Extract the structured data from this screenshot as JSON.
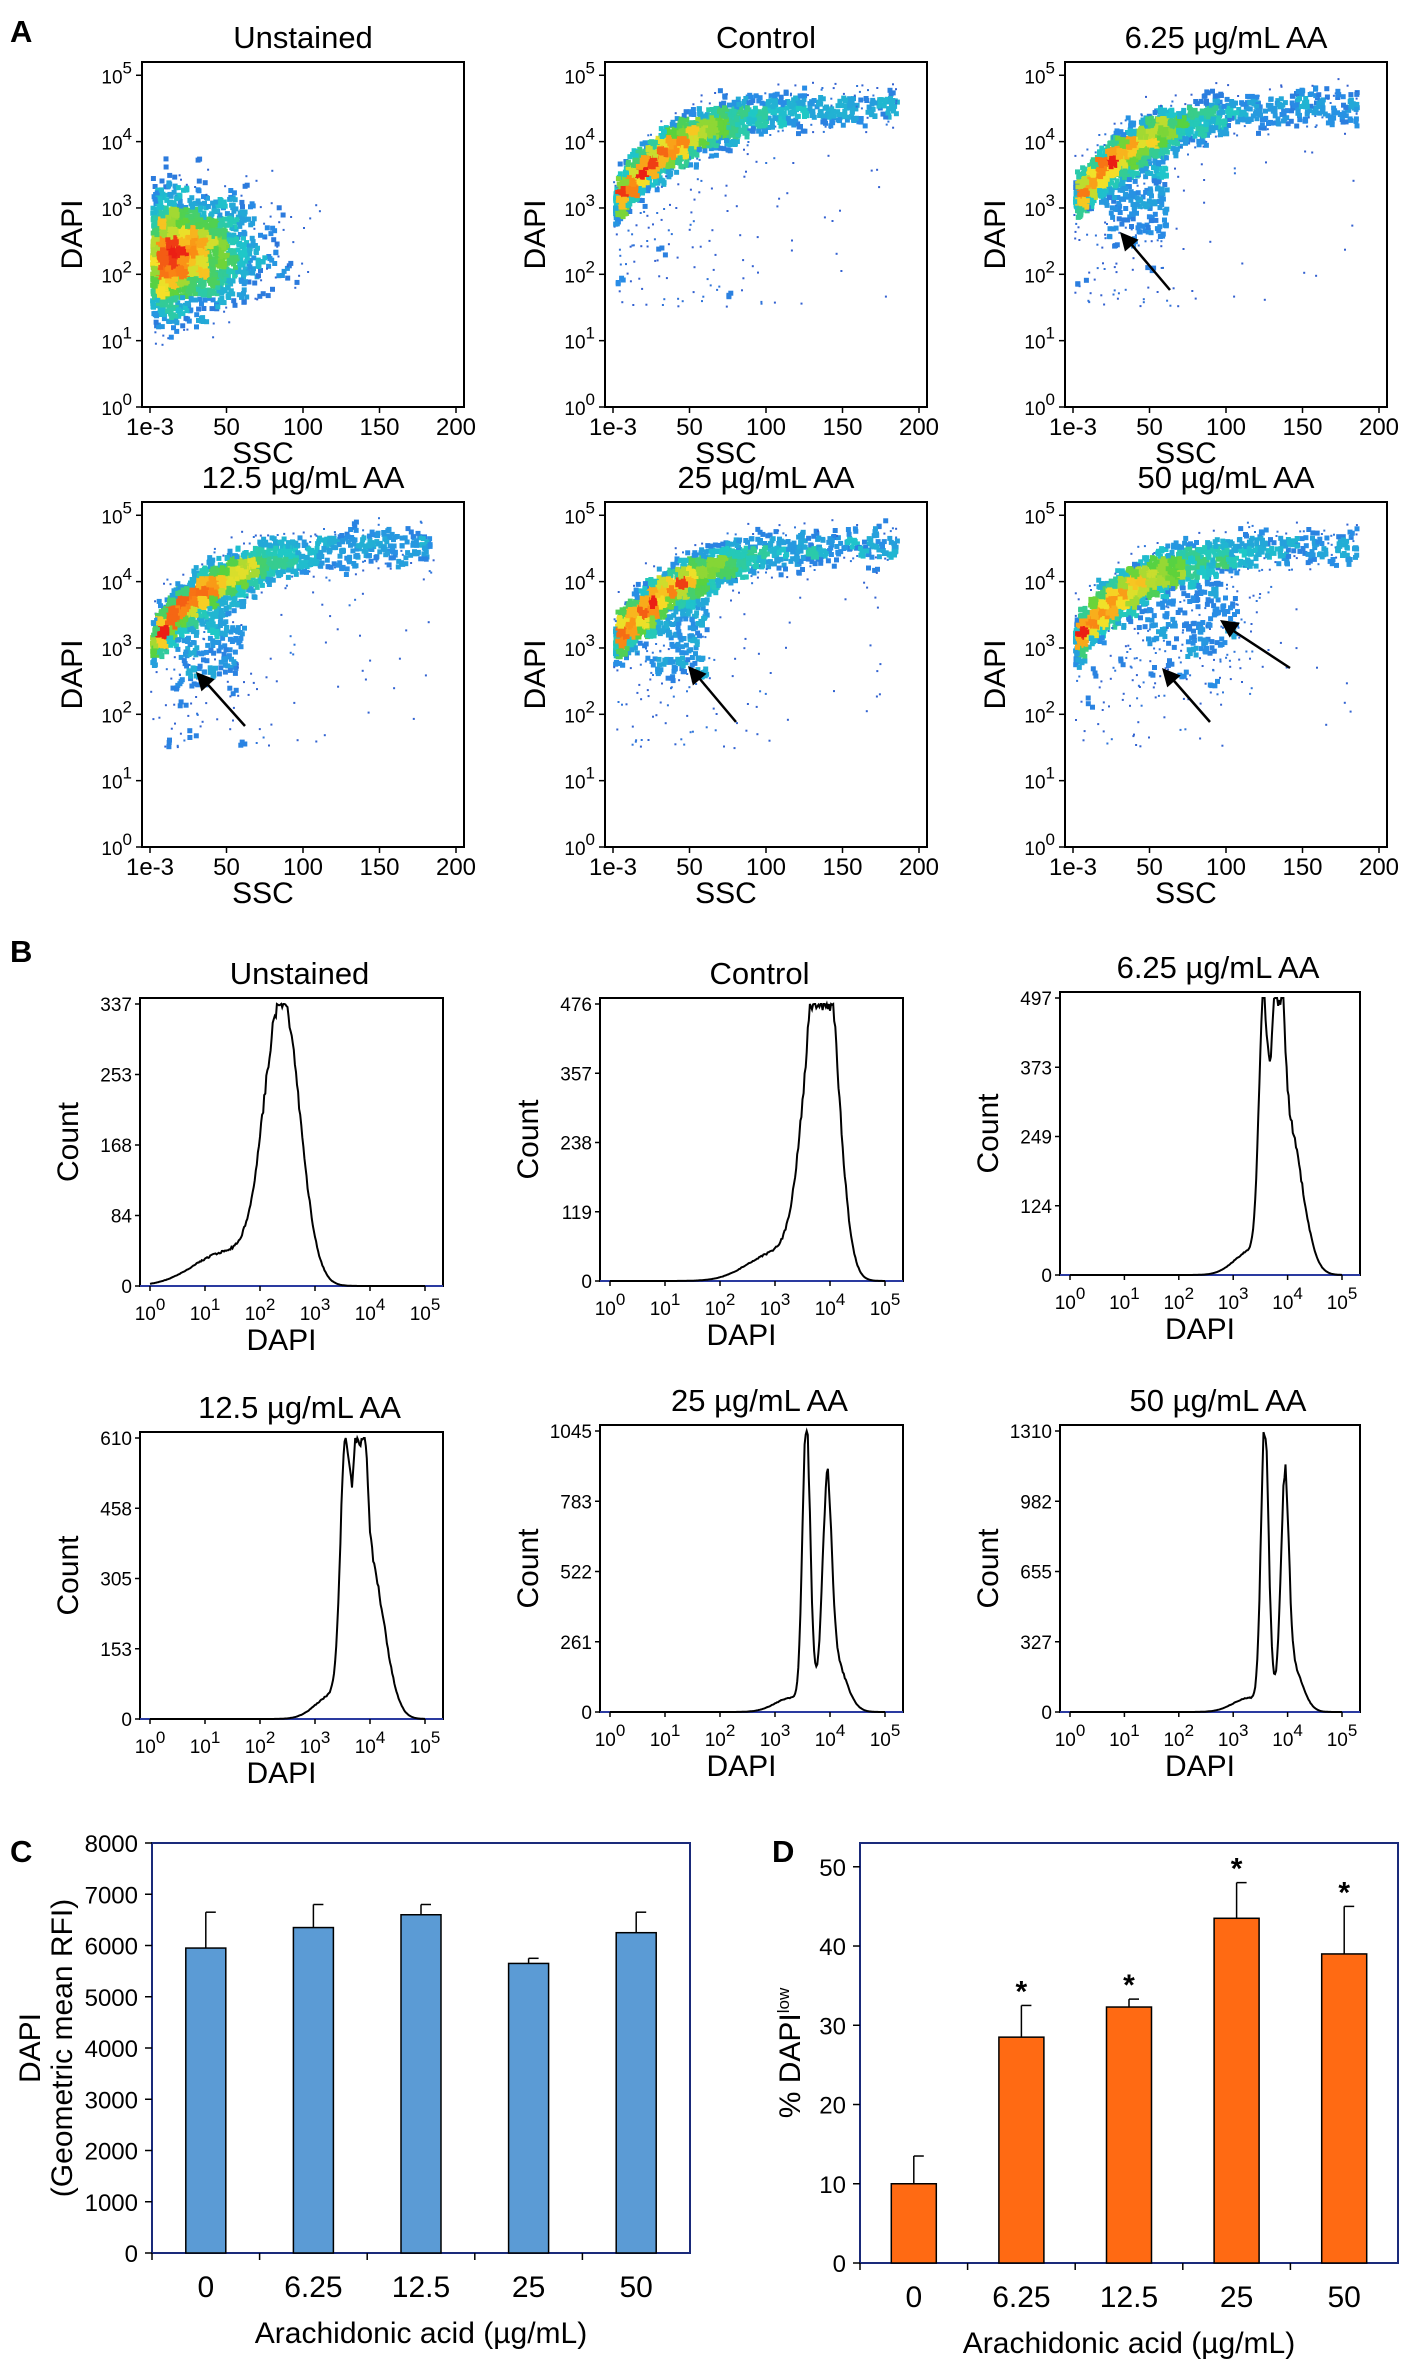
{
  "panel_labels": {
    "a": "A",
    "b": "B",
    "c": "C",
    "d": "D"
  },
  "chart_data": [
    {
      "type": "scatter",
      "panel": "A",
      "description_kind": "flow cytometry density plots",
      "xlabel": "SSC",
      "ylabel": "DAPI",
      "xticks": [
        "1e-3",
        "50",
        "100",
        "150",
        "200"
      ],
      "yticks": [
        {
          "base": "10",
          "exp": "0"
        },
        {
          "base": "10",
          "exp": "1"
        },
        {
          "base": "10",
          "exp": "2"
        },
        {
          "base": "10",
          "exp": "3"
        },
        {
          "base": "10",
          "exp": "4"
        },
        {
          "base": "10",
          "exp": "5"
        }
      ],
      "plots": [
        {
          "title": "Unstained",
          "arrows": 0
        },
        {
          "title": "Control",
          "arrows": 0
        },
        {
          "title": "6.25 µg/mL AA",
          "arrows": 1
        },
        {
          "title": "12.5 µg/mL AA",
          "arrows": 1
        },
        {
          "title": "25 µg/mL AA",
          "arrows": 1
        },
        {
          "title": "50 µg/mL AA",
          "arrows": 2
        }
      ]
    },
    {
      "type": "line",
      "panel": "B",
      "description_kind": "DAPI histograms",
      "xlabel": "DAPI",
      "ylabel": "Count",
      "xticks": [
        {
          "base": "10",
          "exp": "0"
        },
        {
          "base": "10",
          "exp": "1"
        },
        {
          "base": "10",
          "exp": "2"
        },
        {
          "base": "10",
          "exp": "3"
        },
        {
          "base": "10",
          "exp": "4"
        },
        {
          "base": "10",
          "exp": "5"
        }
      ],
      "plots": [
        {
          "title": "Unstained",
          "yticks": [
            "0",
            "84",
            "168",
            "253",
            "337"
          ],
          "ymax": 337,
          "peaks": [
            {
              "mu": 2.4,
              "sd": 0.32,
              "h": 1.0
            }
          ],
          "tail": {
            "mu": 1.4,
            "sd": 0.6,
            "h": 0.12
          }
        },
        {
          "title": "Control",
          "yticks": [
            "0",
            "119",
            "238",
            "357",
            "476"
          ],
          "ymax": 476,
          "peaks": [
            {
              "mu": 3.78,
              "sd": 0.28,
              "h": 0.86
            },
            {
              "mu": 3.95,
              "sd": 0.22,
              "h": 0.55
            }
          ],
          "tail": {
            "mu": 3.0,
            "sd": 0.5,
            "h": 0.1
          }
        },
        {
          "title": "6.25 µg/mL AA",
          "yticks": [
            "0",
            "124",
            "249",
            "373",
            "497"
          ],
          "ymax": 497,
          "peaks": [
            {
              "mu": 3.55,
              "sd": 0.08,
              "h": 0.82
            },
            {
              "mu": 3.82,
              "sd": 0.09,
              "h": 0.9
            },
            {
              "mu": 4.0,
              "sd": 0.26,
              "h": 0.55
            }
          ],
          "tail": {
            "mu": 3.3,
            "sd": 0.3,
            "h": 0.08
          }
        },
        {
          "title": "12.5 µg/mL AA",
          "yticks": [
            "0",
            "153",
            "305",
            "458",
            "610"
          ],
          "ymax": 610,
          "peaks": [
            {
              "mu": 3.55,
              "sd": 0.09,
              "h": 0.82
            },
            {
              "mu": 3.82,
              "sd": 0.09,
              "h": 0.9
            },
            {
              "mu": 4.0,
              "sd": 0.26,
              "h": 0.55
            }
          ],
          "tail": {
            "mu": 3.3,
            "sd": 0.3,
            "h": 0.08
          }
        },
        {
          "title": "25 µg/mL AA",
          "yticks": [
            "0",
            "261",
            "522",
            "783",
            "1045"
          ],
          "ymax": 1045,
          "peaks": [
            {
              "mu": 3.57,
              "sd": 0.07,
              "h": 0.98
            },
            {
              "mu": 3.95,
              "sd": 0.08,
              "h": 0.66
            },
            {
              "mu": 4.05,
              "sd": 0.22,
              "h": 0.2
            }
          ],
          "tail": {
            "mu": 3.3,
            "sd": 0.3,
            "h": 0.05
          }
        },
        {
          "title": "50 µg/mL AA",
          "yticks": [
            "0",
            "327",
            "655",
            "982",
            "1310"
          ],
          "ymax": 1310,
          "peaks": [
            {
              "mu": 3.58,
              "sd": 0.07,
              "h": 0.98
            },
            {
              "mu": 3.95,
              "sd": 0.07,
              "h": 0.7
            },
            {
              "mu": 4.05,
              "sd": 0.2,
              "h": 0.18
            }
          ],
          "tail": {
            "mu": 3.3,
            "sd": 0.3,
            "h": 0.05
          }
        }
      ]
    },
    {
      "type": "bar",
      "panel": "C",
      "categories": [
        "0",
        "6.25",
        "12.5",
        "25",
        "50"
      ],
      "values": [
        5950,
        6350,
        6600,
        5650,
        6250
      ],
      "errors": [
        700,
        450,
        200,
        100,
        400
      ],
      "ylim": [
        0,
        8000
      ],
      "yticks": [
        "0",
        "1000",
        "2000",
        "3000",
        "4000",
        "5000",
        "6000",
        "7000",
        "8000"
      ],
      "xlabel": "Arachidonic acid (µg/mL)",
      "ylabel": "DAPI",
      "ylabel2": "(Geometric mean RFI)",
      "color": "#5b9bd5"
    },
    {
      "type": "bar",
      "panel": "D",
      "categories": [
        "0",
        "6.25",
        "12.5",
        "25",
        "50"
      ],
      "values": [
        10,
        28.5,
        32.3,
        43.5,
        39.0
      ],
      "errors": [
        3.5,
        4,
        1,
        4.5,
        6
      ],
      "significance": [
        "",
        "*",
        "*",
        "*",
        "*"
      ],
      "ylim": [
        0,
        53
      ],
      "yticks": [
        "0",
        "10",
        "20",
        "30",
        "40",
        "50"
      ],
      "xlabel": "Arachidonic acid (µg/mL)",
      "ylabel": "% DAPI",
      "ylabel_sup": "low",
      "color": "#ff6a13"
    }
  ]
}
